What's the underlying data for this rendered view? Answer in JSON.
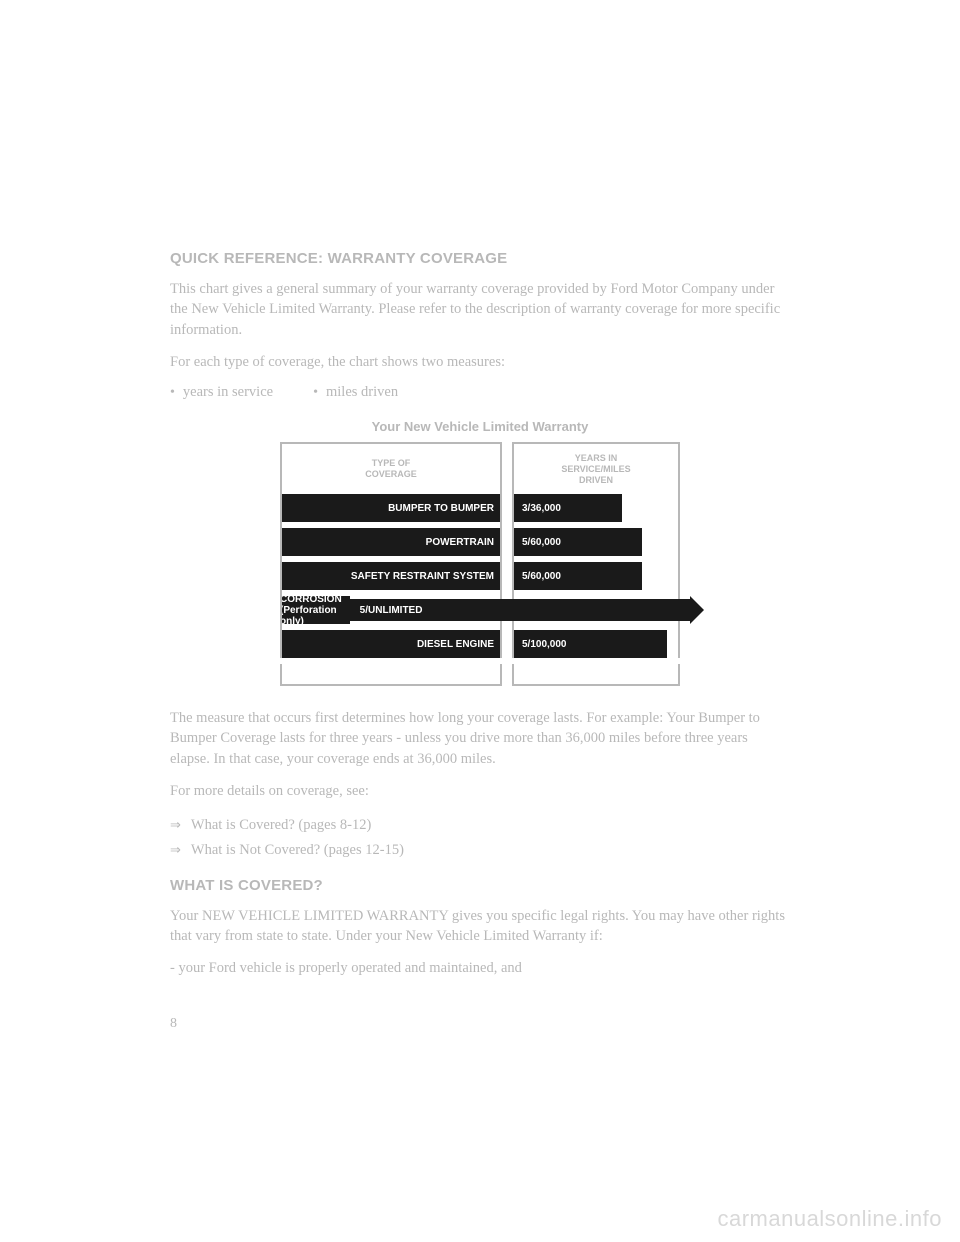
{
  "heading1": "QUICK REFERENCE: WARRANTY COVERAGE",
  "intro_para": "This chart gives a general summary of your warranty coverage provided by Ford Motor Company under the New Vehicle Limited Warranty. Please refer to the description of warranty coverage for more specific information.",
  "measures_intro": "For each type of coverage, the chart shows two measures:",
  "bullets": {
    "b1": "years in service",
    "b2": "miles driven"
  },
  "chart": {
    "title": "Your New Vehicle Limited Warranty",
    "header_left": "TYPE OF\nCOVERAGE",
    "header_right": "YEARS IN\nSERVICE/MILES\nDRIVEN",
    "bar_color": "#1a1a1a",
    "border_color": "#b8b8b8",
    "text_color": "#ffffff",
    "rows": [
      {
        "label": "BUMPER TO BUMPER",
        "value": "3/36,000",
        "right_width": 110
      },
      {
        "label": "POWERTRAIN",
        "value": "5/60,000",
        "right_width": 130
      },
      {
        "label": "SAFETY RESTRAINT SYSTEM",
        "value": "5/60,000",
        "right_width": 130
      },
      {
        "label": "CORROSION (Perforation only)",
        "value": "5/UNLIMITED",
        "right_width": 340,
        "is_arrow": true
      },
      {
        "label": "DIESEL ENGINE",
        "value": "5/100,000",
        "right_width": 155
      }
    ]
  },
  "explain_para": "The measure that occurs first determines how long your coverage lasts. For example: Your Bumper to Bumper Coverage lasts for three years - unless you drive more than 36,000 miles before three years elapse. In that case, your coverage ends at 36,000 miles.",
  "details_intro": "For more details on coverage, see:",
  "refs": {
    "r1": "What is Covered? (pages 8-12)",
    "r2": "What is Not Covered? (pages 12-15)"
  },
  "heading2": "WHAT IS COVERED?",
  "legal_para": "Your NEW VEHICLE LIMITED WARRANTY gives you specific legal rights. You may have other rights that vary from state to state. Under your New Vehicle Limited Warranty if:",
  "cond1": "- your Ford vehicle is properly operated and maintained, and",
  "page_number": "8",
  "watermark": "carmanualsonline.info"
}
